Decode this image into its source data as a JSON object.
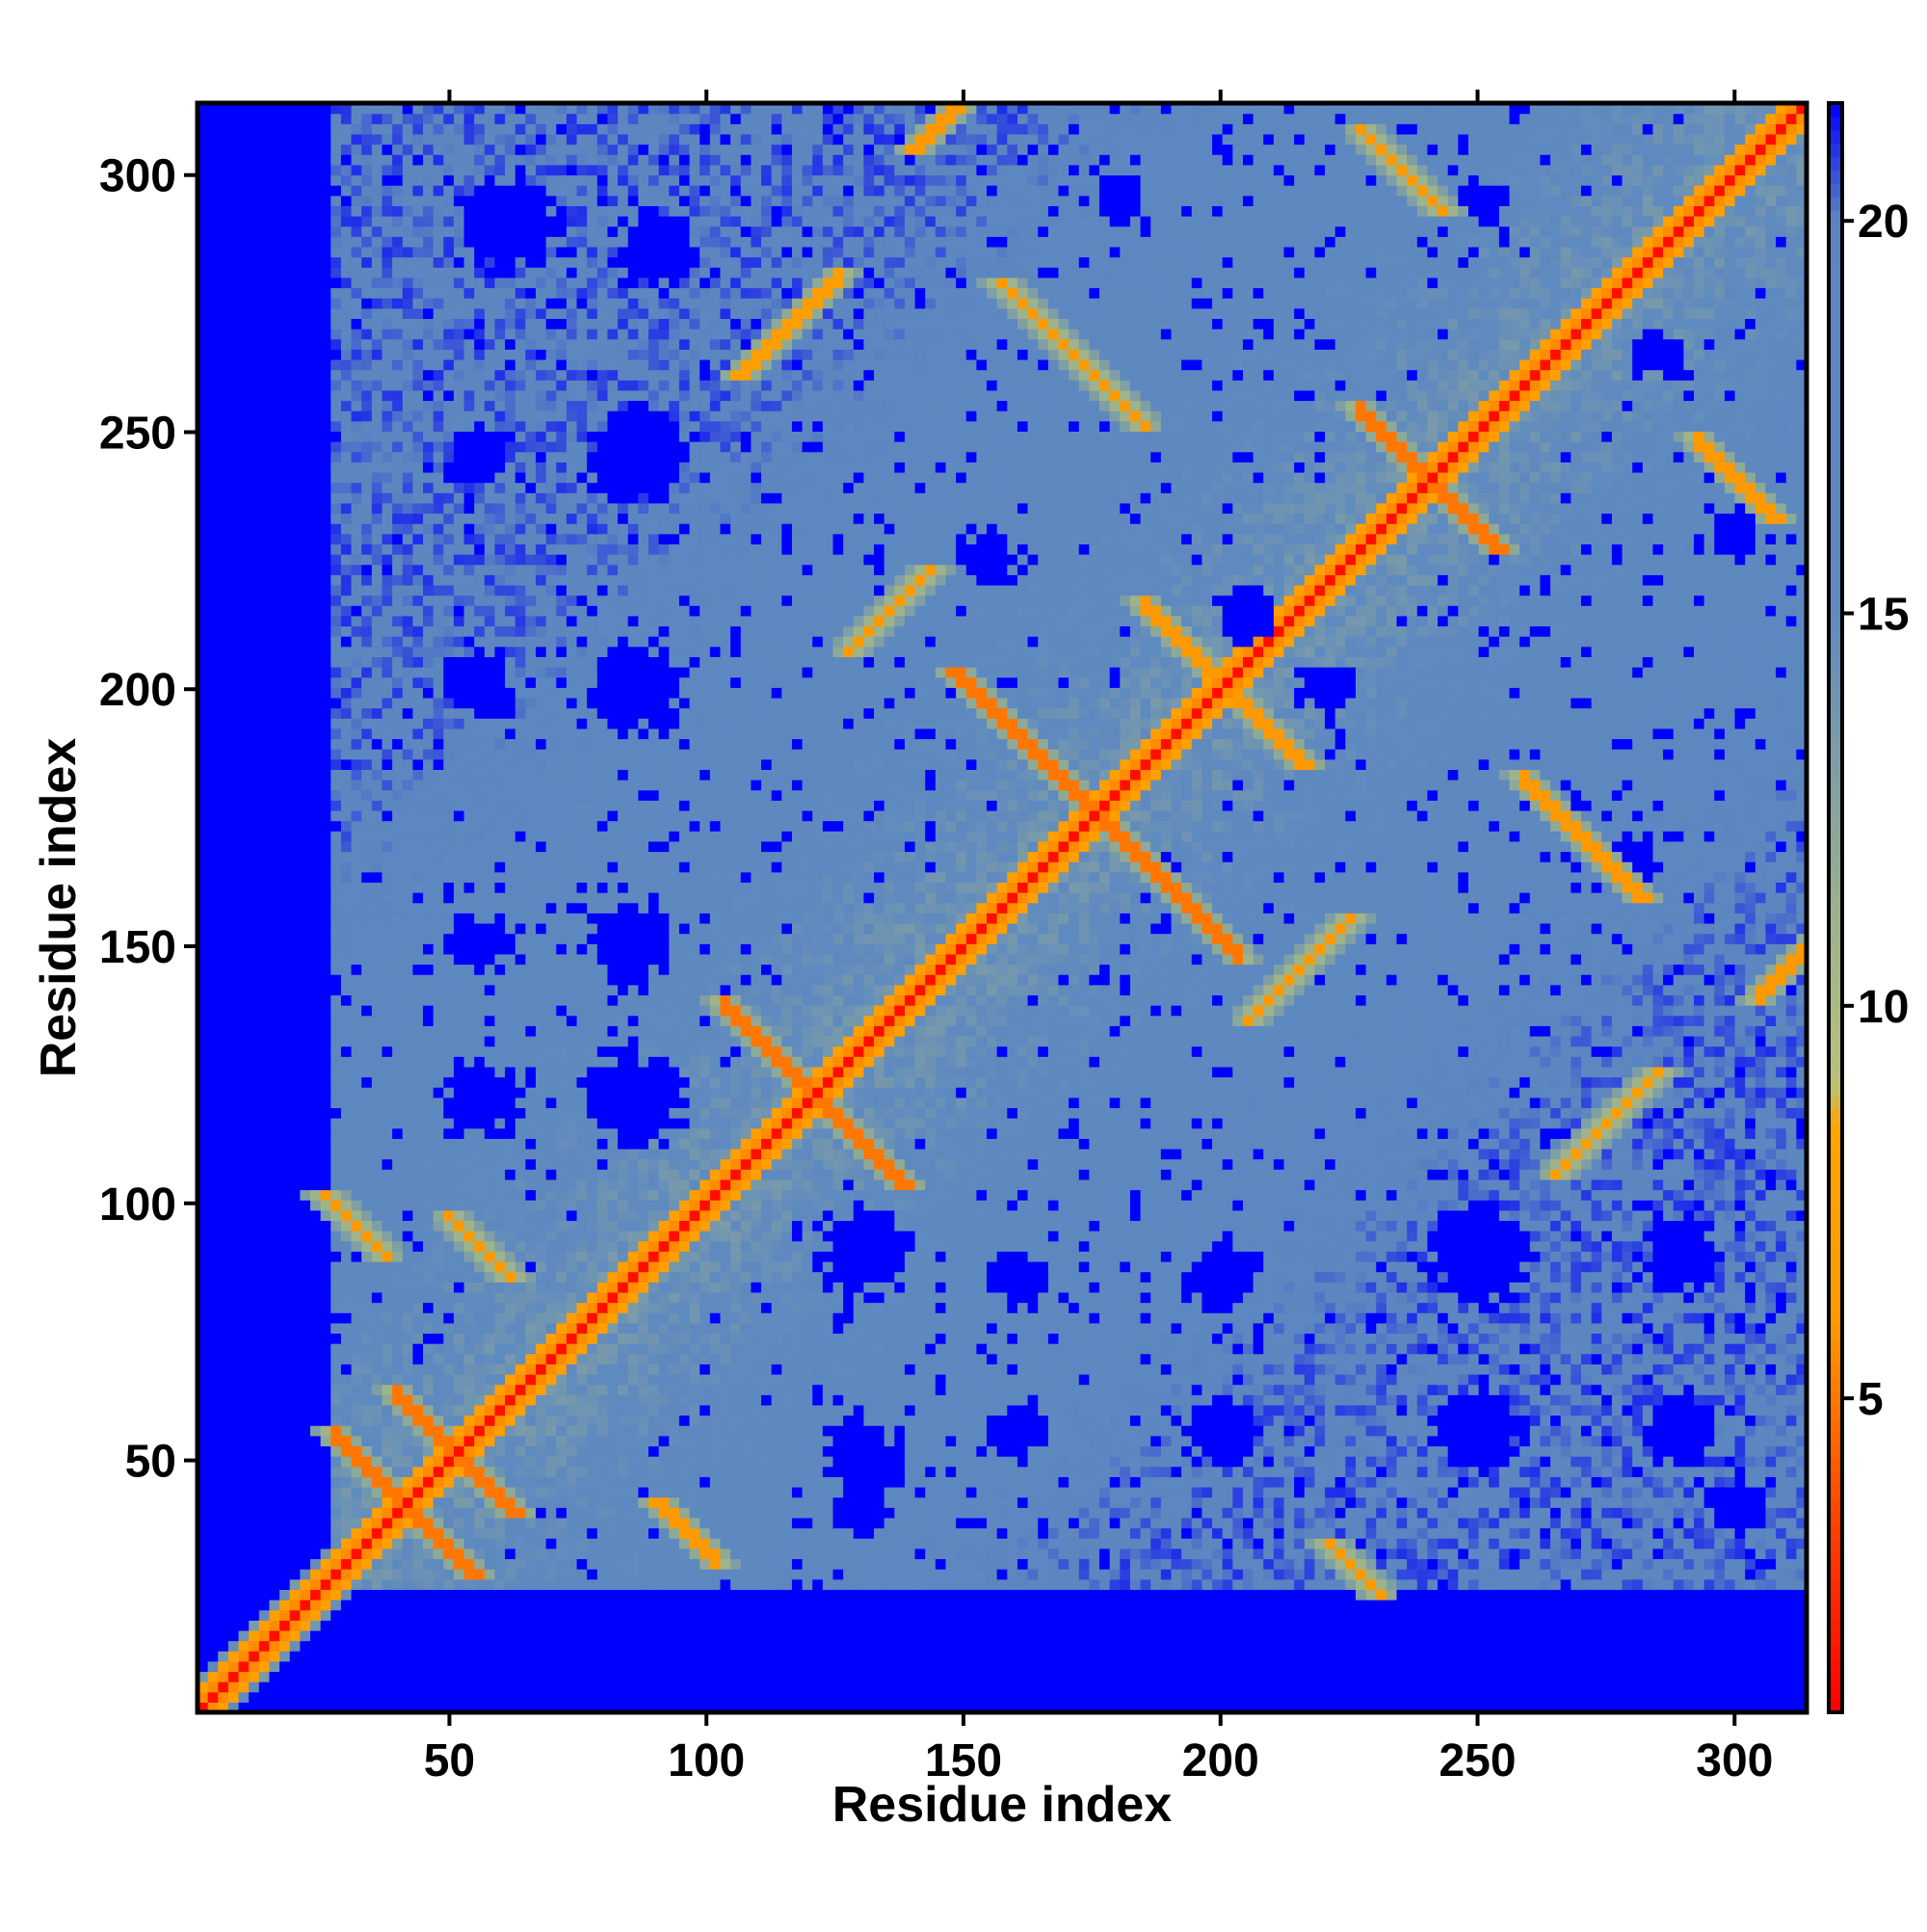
{
  "chart_data": {
    "type": "heatmap",
    "title": "",
    "xlabel": "Residue index",
    "ylabel": "Residue index",
    "n_residues": 314,
    "xlim": [
      1,
      314
    ],
    "ylim": [
      1,
      314
    ],
    "x_ticks": [
      50,
      100,
      150,
      200,
      250,
      300
    ],
    "y_ticks": [
      50,
      100,
      150,
      200,
      250,
      300
    ],
    "x_tick_labels": [
      "50",
      "100",
      "150",
      "200",
      "250",
      "300"
    ],
    "y_tick_labels": [
      "50",
      "100",
      "150",
      "200",
      "250",
      "300"
    ],
    "colorbar": {
      "range": [
        1,
        21.5
      ],
      "ticks": [
        5,
        10,
        15,
        20
      ],
      "tick_labels": [
        "5",
        "10",
        "15",
        "20"
      ],
      "colors": [
        {
          "value": 1,
          "color": "#ff0000"
        },
        {
          "value": 3.5,
          "color": "#ff4400"
        },
        {
          "value": 6,
          "color": "#ff9900"
        },
        {
          "value": 8.5,
          "color": "#ffa500"
        },
        {
          "value": 9,
          "color": "#b8c27a"
        },
        {
          "value": 11,
          "color": "#9fb38a"
        },
        {
          "value": 15,
          "color": "#5f8abf"
        },
        {
          "value": 20,
          "color": "#5b86c0"
        },
        {
          "value": 21.5,
          "color": "#0000ff"
        }
      ]
    },
    "background_value": 21.5,
    "diagonal_value": 1,
    "upper_triangle_contacts": [
      {
        "x": 120,
        "y": 120,
        "len": 18,
        "dir": "anti",
        "value": 5
      },
      {
        "x": 175,
        "y": 175,
        "len": 28,
        "dir": "anti",
        "value": 5
      },
      {
        "x": 200,
        "y": 200,
        "len": 16,
        "dir": "anti",
        "value": 6
      },
      {
        "x": 240,
        "y": 240,
        "len": 14,
        "dir": "anti",
        "value": 5
      },
      {
        "x": 115,
        "y": 270,
        "len": 10,
        "dir": "par",
        "value": 7
      },
      {
        "x": 170,
        "y": 265,
        "len": 14,
        "dir": "anti",
        "value": 6
      },
      {
        "x": 235,
        "y": 300,
        "len": 8,
        "dir": "anti",
        "value": 6
      },
      {
        "x": 270,
        "y": 170,
        "len": 12,
        "dir": "anti",
        "value": 6
      },
      {
        "x": 300,
        "y": 240,
        "len": 8,
        "dir": "anti",
        "value": 6
      },
      {
        "x": 275,
        "y": 115,
        "len": 10,
        "dir": "par",
        "value": 7
      },
      {
        "x": 215,
        "y": 145,
        "len": 10,
        "dir": "par",
        "value": 6
      },
      {
        "x": 135,
        "y": 215,
        "len": 8,
        "dir": "par",
        "value": 6
      },
      {
        "x": 310,
        "y": 145,
        "len": 6,
        "dir": "par",
        "value": 6
      },
      {
        "x": 145,
        "y": 310,
        "len": 6,
        "dir": "par",
        "value": 6
      }
    ],
    "lower_triangle_contacts": [
      {
        "x": 40,
        "y": 40,
        "len": 14,
        "dir": "anti",
        "value": 5
      },
      {
        "x": 50,
        "y": 50,
        "len": 12,
        "dir": "anti",
        "value": 5
      },
      {
        "x": 30,
        "y": 95,
        "len": 6,
        "dir": "anti",
        "value": 6
      },
      {
        "x": 55,
        "y": 90,
        "len": 6,
        "dir": "anti",
        "value": 6
      },
      {
        "x": 95,
        "y": 35,
        "len": 6,
        "dir": "anti",
        "value": 6
      },
      {
        "x": 225,
        "y": 28,
        "len": 5,
        "dir": "anti",
        "value": 6
      }
    ],
    "far_regions_value": 21.5
  }
}
